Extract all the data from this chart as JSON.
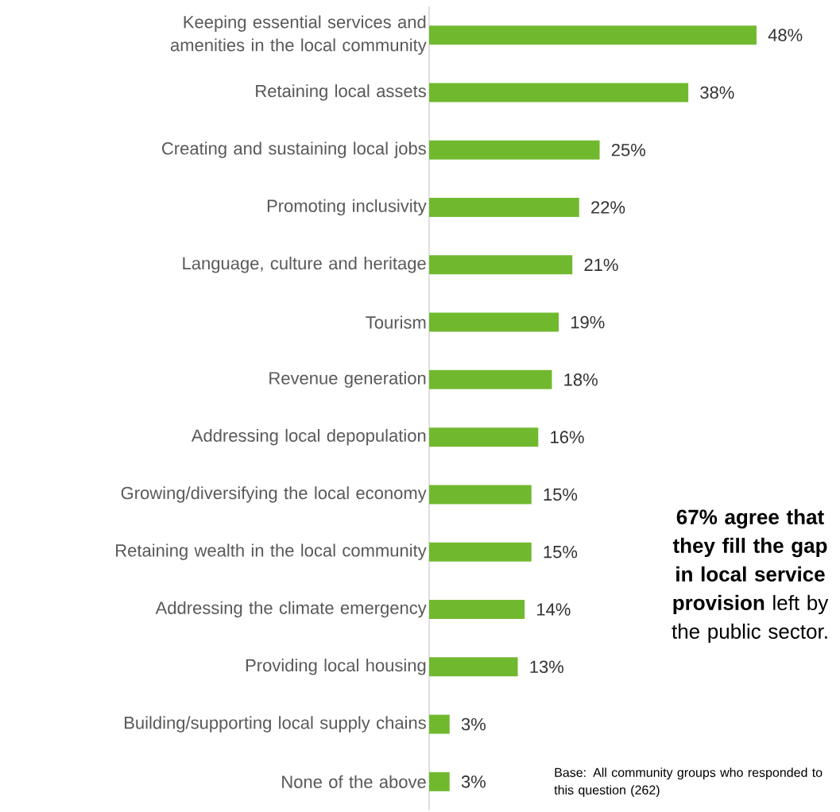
{
  "chart_data": {
    "type": "bar",
    "orientation": "horizontal",
    "categories": [
      "Keeping essential services and amenities in the local community",
      "Retaining local assets",
      "Creating and sustaining local jobs",
      "Promoting inclusivity",
      "Language, culture and heritage",
      "Tourism",
      "Revenue generation",
      "Addressing local depopulation",
      "Growing/diversifying the local economy",
      "Retaining wealth in the local community",
      "Addressing the climate emergency",
      "Providing local housing",
      "Building/supporting local supply chains",
      "None of the above"
    ],
    "values": [
      48,
      38,
      25,
      22,
      21,
      19,
      18,
      16,
      15,
      15,
      14,
      13,
      3,
      3
    ],
    "value_labels": [
      "48%",
      "38%",
      "25%",
      "22%",
      "21%",
      "19%",
      "18%",
      "16%",
      "15%",
      "15%",
      "14%",
      "13%",
      "3%",
      "3%"
    ],
    "color": "#70b92e",
    "annotations": [
      "**67% agree that they fill the gap in local service provision** left by the public sector.",
      "Base: All community groups who responded to this question (262)"
    ]
  }
}
